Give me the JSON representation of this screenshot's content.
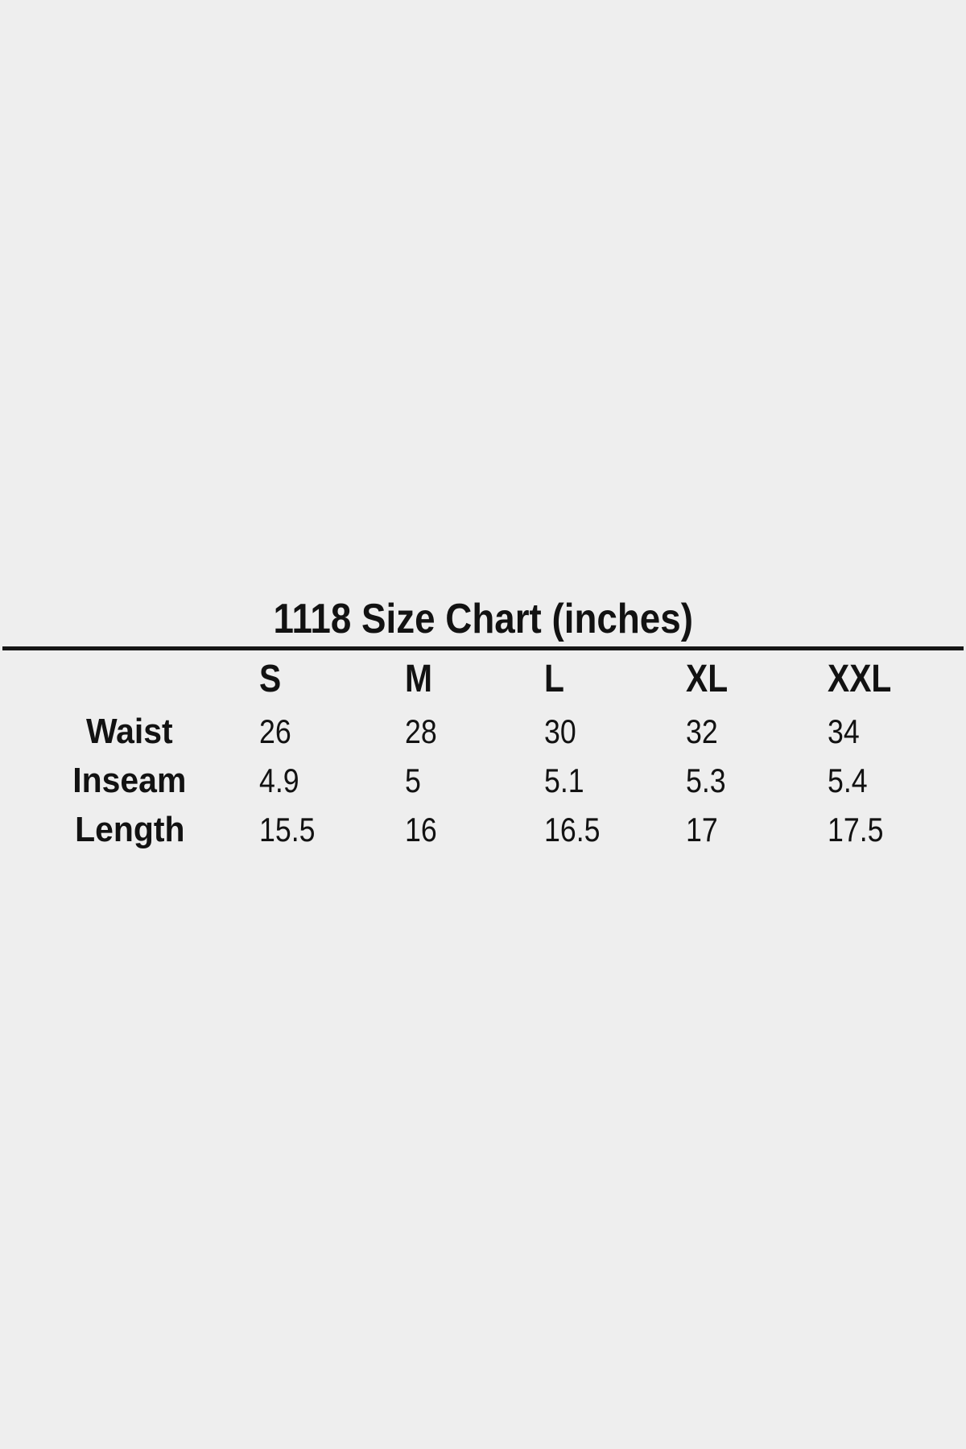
{
  "page": {
    "background_color": "#eeeeee",
    "text_color": "#121212",
    "divider_color": "#161616"
  },
  "chart_data": {
    "type": "table",
    "title": "1118 Size Chart (inches)",
    "unit": "inches",
    "columns": [
      "S",
      "M",
      "L",
      "XL",
      "XXL"
    ],
    "rows": [
      {
        "label": "Waist",
        "values": [
          "26",
          "28",
          "30",
          "32",
          "34"
        ]
      },
      {
        "label": "Inseam",
        "values": [
          "4.9",
          "5",
          "5.1",
          "5.3",
          "5.4"
        ]
      },
      {
        "label": "Length",
        "values": [
          "15.5",
          "16",
          "16.5",
          "17",
          "17.5"
        ]
      }
    ],
    "layout": {
      "legend": "none",
      "grid": "off",
      "header_divider": "single-heavy-rule-below-title"
    }
  }
}
